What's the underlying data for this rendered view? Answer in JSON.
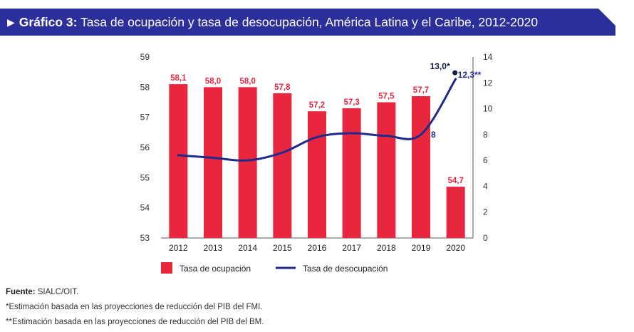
{
  "header": {
    "prefix": "Gráfico 3:",
    "title": "Tasa de ocupación y tasa de desocupación, América Latina y el Caribe, 2012-2020"
  },
  "chart_data": {
    "type": "bar",
    "categories": [
      "2012",
      "2013",
      "2014",
      "2015",
      "2016",
      "2017",
      "2018",
      "2019",
      "2020"
    ],
    "series": [
      {
        "name": "Tasa de ocupación",
        "type": "bar",
        "axis": "left",
        "color": "#e8263e",
        "values": [
          58.1,
          58.0,
          58.0,
          57.8,
          57.2,
          57.3,
          57.5,
          57.7,
          54.7
        ],
        "labels": [
          "58,1",
          "58,0",
          "58,0",
          "57,8",
          "57,2",
          "57,3",
          "57,5",
          "57,7",
          "54,7"
        ]
      },
      {
        "name": "Tasa de desocupación",
        "type": "line",
        "axis": "right",
        "color": "#1e2b8a",
        "values": [
          6.4,
          6.2,
          6.0,
          6.6,
          7.8,
          8.1,
          7.9,
          8.0,
          12.3
        ]
      }
    ],
    "estimate_point": {
      "x": "2020",
      "value": 13.0,
      "label": "13,0*"
    },
    "line_labels": [
      {
        "x": "2019",
        "text": "8"
      },
      {
        "x": "2020",
        "text": "12,3**"
      }
    ],
    "left_axis": {
      "min": 53,
      "max": 59,
      "ticks": [
        "53",
        "54",
        "55",
        "56",
        "57",
        "58",
        "59"
      ]
    },
    "right_axis": {
      "min": 0,
      "max": 14,
      "ticks": [
        "0",
        "2",
        "4",
        "6",
        "8",
        "10",
        "12",
        "14"
      ]
    },
    "legend_position": "bottom",
    "grid": false
  },
  "legend": {
    "bar_label": "Tasa de ocupación",
    "line_label": "Tasa de desocupación"
  },
  "notes": {
    "source_label": "Fuente:",
    "source_text": "SIALC/OIT.",
    "note1": "*Estimación basada en las proyecciones de reducción del PIB del FMI.",
    "note2": "**Estimación basada en las proyecciones de reducción del PIB del BM."
  },
  "colors": {
    "header_bg": "#2b2f9c",
    "bar": "#e8263e",
    "line": "#1e2b8a"
  }
}
